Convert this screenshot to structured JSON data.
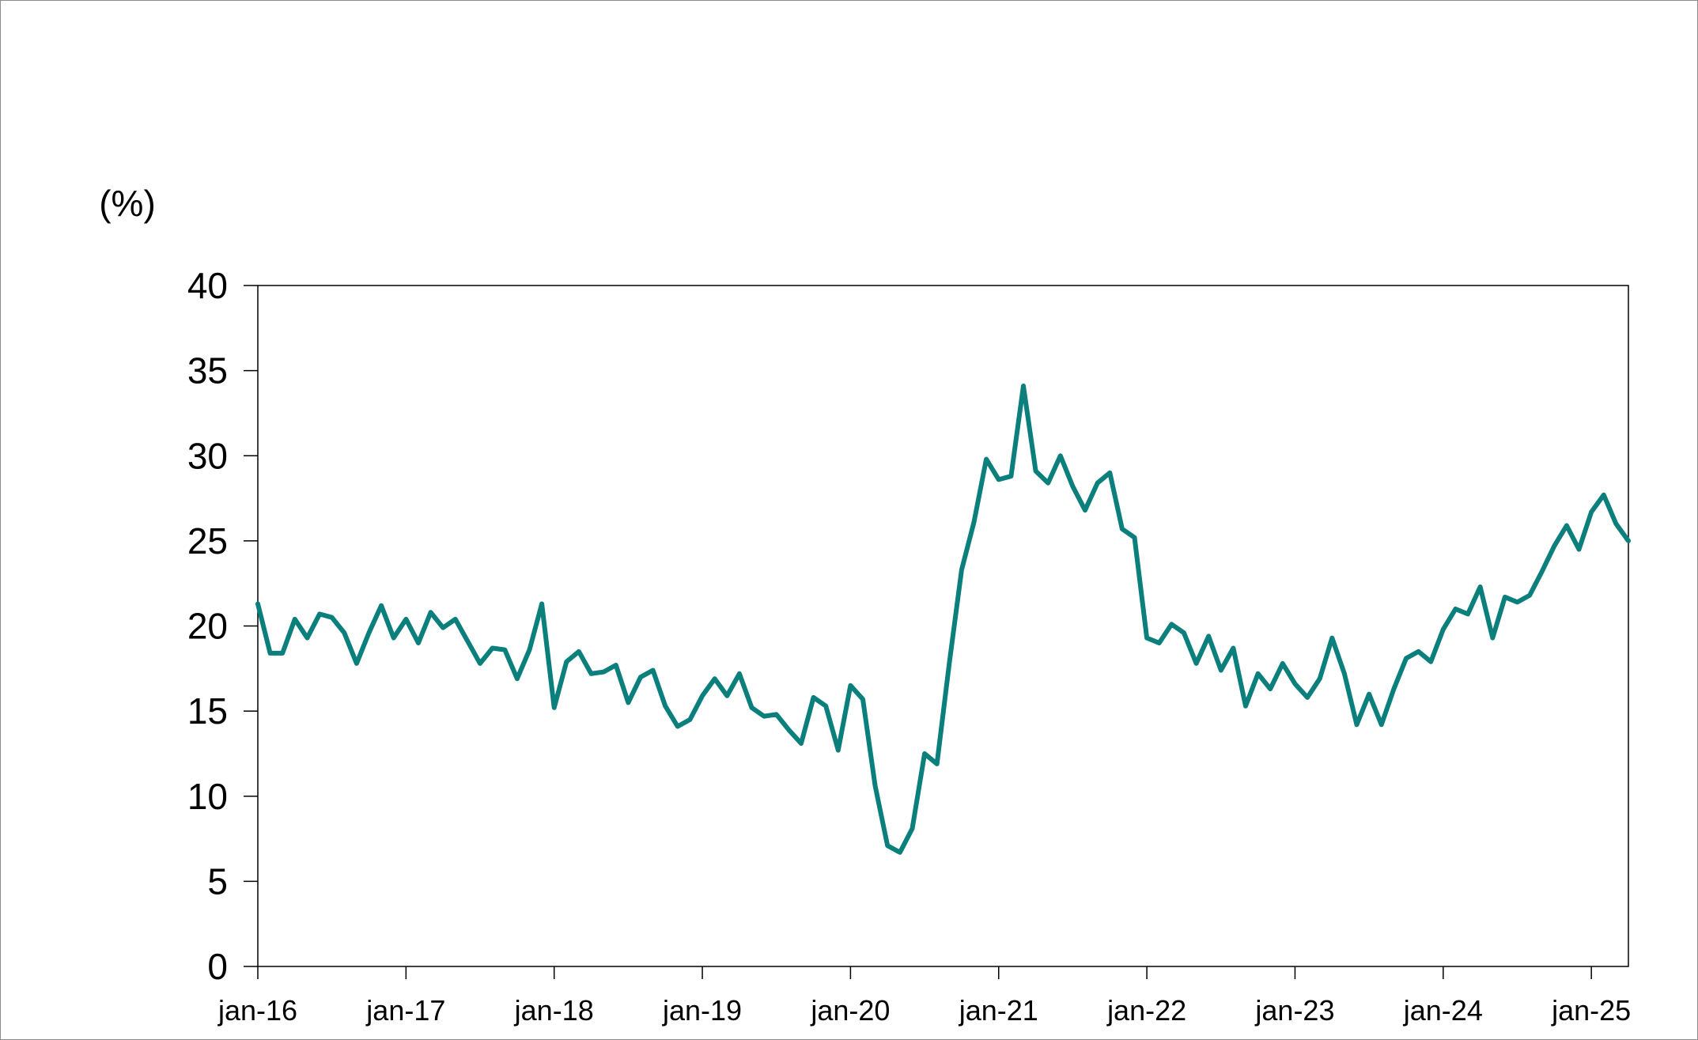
{
  "chart_data": {
    "type": "line",
    "title": "",
    "ylabel": "(%)",
    "xlabel": "",
    "ylim": [
      0,
      40
    ],
    "yticks": [
      "0",
      "5",
      "10",
      "15",
      "20",
      "25",
      "30",
      "35",
      "40"
    ],
    "xticks": [
      "jan-16",
      "jan-17",
      "jan-18",
      "jan-19",
      "jan-20",
      "jan-21",
      "jan-22",
      "jan-23",
      "jan-24",
      "jan-25"
    ],
    "x_start": "2016-01",
    "x_end": "2025-04",
    "grid": false,
    "legend": "none",
    "line_color": "#0a7f7c",
    "series": [
      {
        "values": [
          21.3,
          18.4,
          18.4,
          20.4,
          19.3,
          20.7,
          20.5,
          19.6,
          17.8,
          19.6,
          21.2,
          19.3,
          20.4,
          19.0,
          20.8,
          19.9,
          20.4,
          19.1,
          17.8,
          18.7,
          18.6,
          16.9,
          18.6,
          21.3,
          15.2,
          17.9,
          18.5,
          17.2,
          17.3,
          17.7,
          15.5,
          17.0,
          17.4,
          15.3,
          14.1,
          14.5,
          15.9,
          16.9,
          15.9,
          17.2,
          15.2,
          14.7,
          14.8,
          13.9,
          13.1,
          15.8,
          15.3,
          12.7,
          16.5,
          15.7,
          10.6,
          7.1,
          6.7,
          8.1,
          12.5,
          11.9,
          17.8,
          23.3,
          26.1,
          29.8,
          28.6,
          28.8,
          34.1,
          29.1,
          28.4,
          30.0,
          28.2,
          26.8,
          28.4,
          29.0,
          25.7,
          25.2,
          19.3,
          19.0,
          20.1,
          19.6,
          17.8,
          19.4,
          17.4,
          18.7,
          15.3,
          17.2,
          16.3,
          17.8,
          16.6,
          15.8,
          16.9,
          19.3,
          17.2,
          14.2,
          16.0,
          14.2,
          16.3,
          18.1,
          18.5,
          17.9,
          19.8,
          21.0,
          20.7,
          22.3,
          19.3,
          21.7,
          21.4,
          21.8,
          23.2,
          24.7,
          25.9,
          24.5,
          26.7,
          27.7,
          26.0,
          25.0
        ]
      }
    ]
  }
}
